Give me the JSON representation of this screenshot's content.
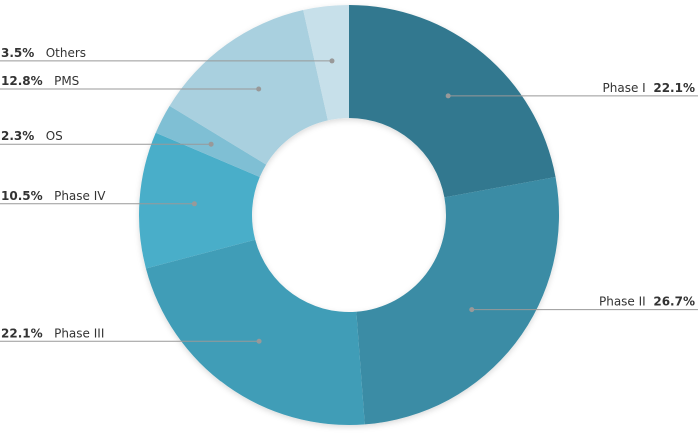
{
  "chart_data": {
    "type": "donut",
    "categories": [
      "Phase I",
      "Phase II",
      "Phase III",
      "Phase IV",
      "OS",
      "PMS",
      "Others"
    ],
    "values": [
      22.1,
      26.7,
      22.1,
      10.5,
      2.3,
      12.8,
      3.5
    ],
    "value_labels": [
      "22.1%",
      "26.7%",
      "22.1%",
      "10.5%",
      "2.3%",
      "12.8%",
      "3.5%"
    ],
    "colors": [
      "#31788f",
      "#3a8ca5",
      "#419db7",
      "#4aaec9",
      "#7fbfd4",
      "#a9d0df",
      "#c7e0ea"
    ]
  }
}
